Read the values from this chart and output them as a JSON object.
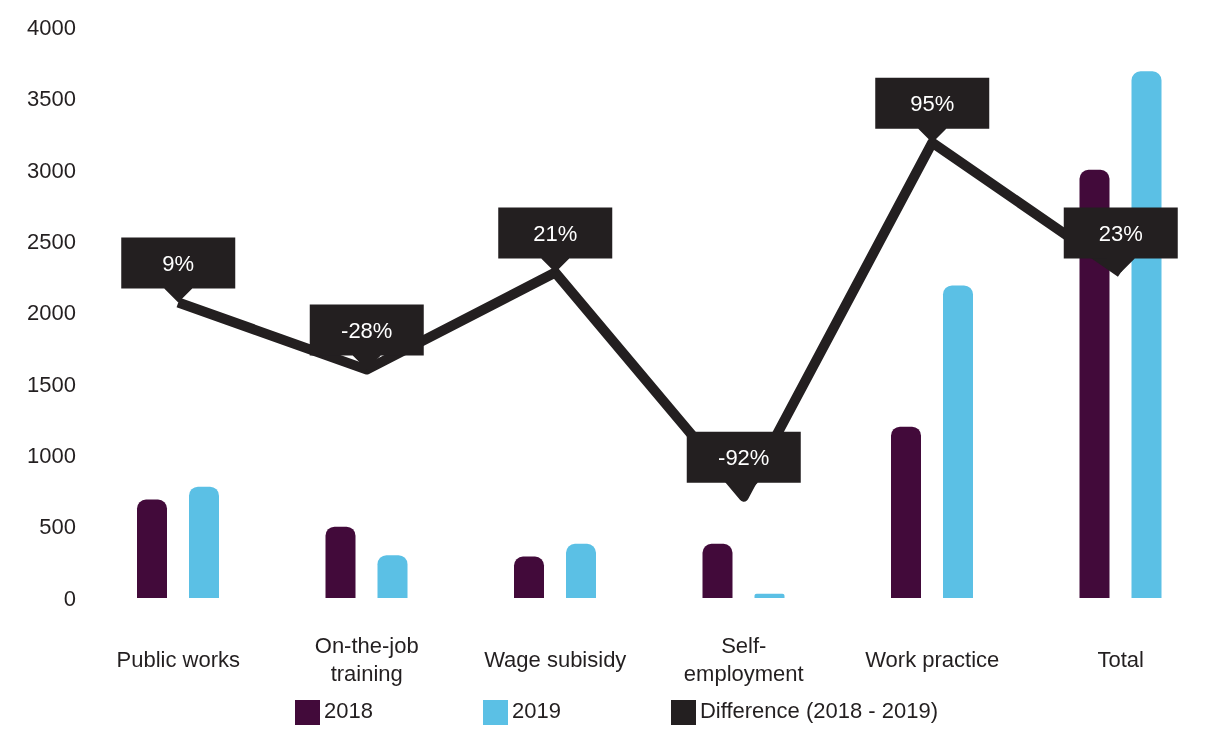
{
  "chart_data": {
    "type": "bar",
    "categories": [
      "Public works",
      "On-the-job training",
      "Wage subisidy",
      "Self-employment",
      "Work practice",
      "Total"
    ],
    "series": [
      {
        "name": "2018",
        "color": "#420a3a",
        "values": [
          690,
          500,
          290,
          380,
          1200,
          3000
        ]
      },
      {
        "name": "2019",
        "color": "#5bc0e5",
        "values": [
          780,
          300,
          380,
          30,
          2190,
          3690
        ]
      },
      {
        "name": "Difference (2018 - 2019)",
        "type": "line",
        "color": "#231f20",
        "values": [
          2070,
          1600,
          2280,
          710,
          3190,
          2280
        ]
      }
    ],
    "annotations": [
      {
        "text": "9%",
        "x": "Public works",
        "y": 2070
      },
      {
        "text": "-28%",
        "x": "On-the-job training",
        "y": 1600
      },
      {
        "text": "21%",
        "x": "Wage subisidy",
        "y": 2280
      },
      {
        "text": "-92%",
        "x": "Self-employment",
        "y": 710
      },
      {
        "text": "95%",
        "x": "Work practice",
        "y": 3190
      },
      {
        "text": "23%",
        "x": "Total",
        "y": 2280
      }
    ],
    "ylim": [
      0,
      4000
    ],
    "yticks": [
      0,
      500,
      1000,
      1500,
      2000,
      2500,
      3000,
      3500,
      4000
    ],
    "legend": "bottom",
    "marker": "none"
  }
}
